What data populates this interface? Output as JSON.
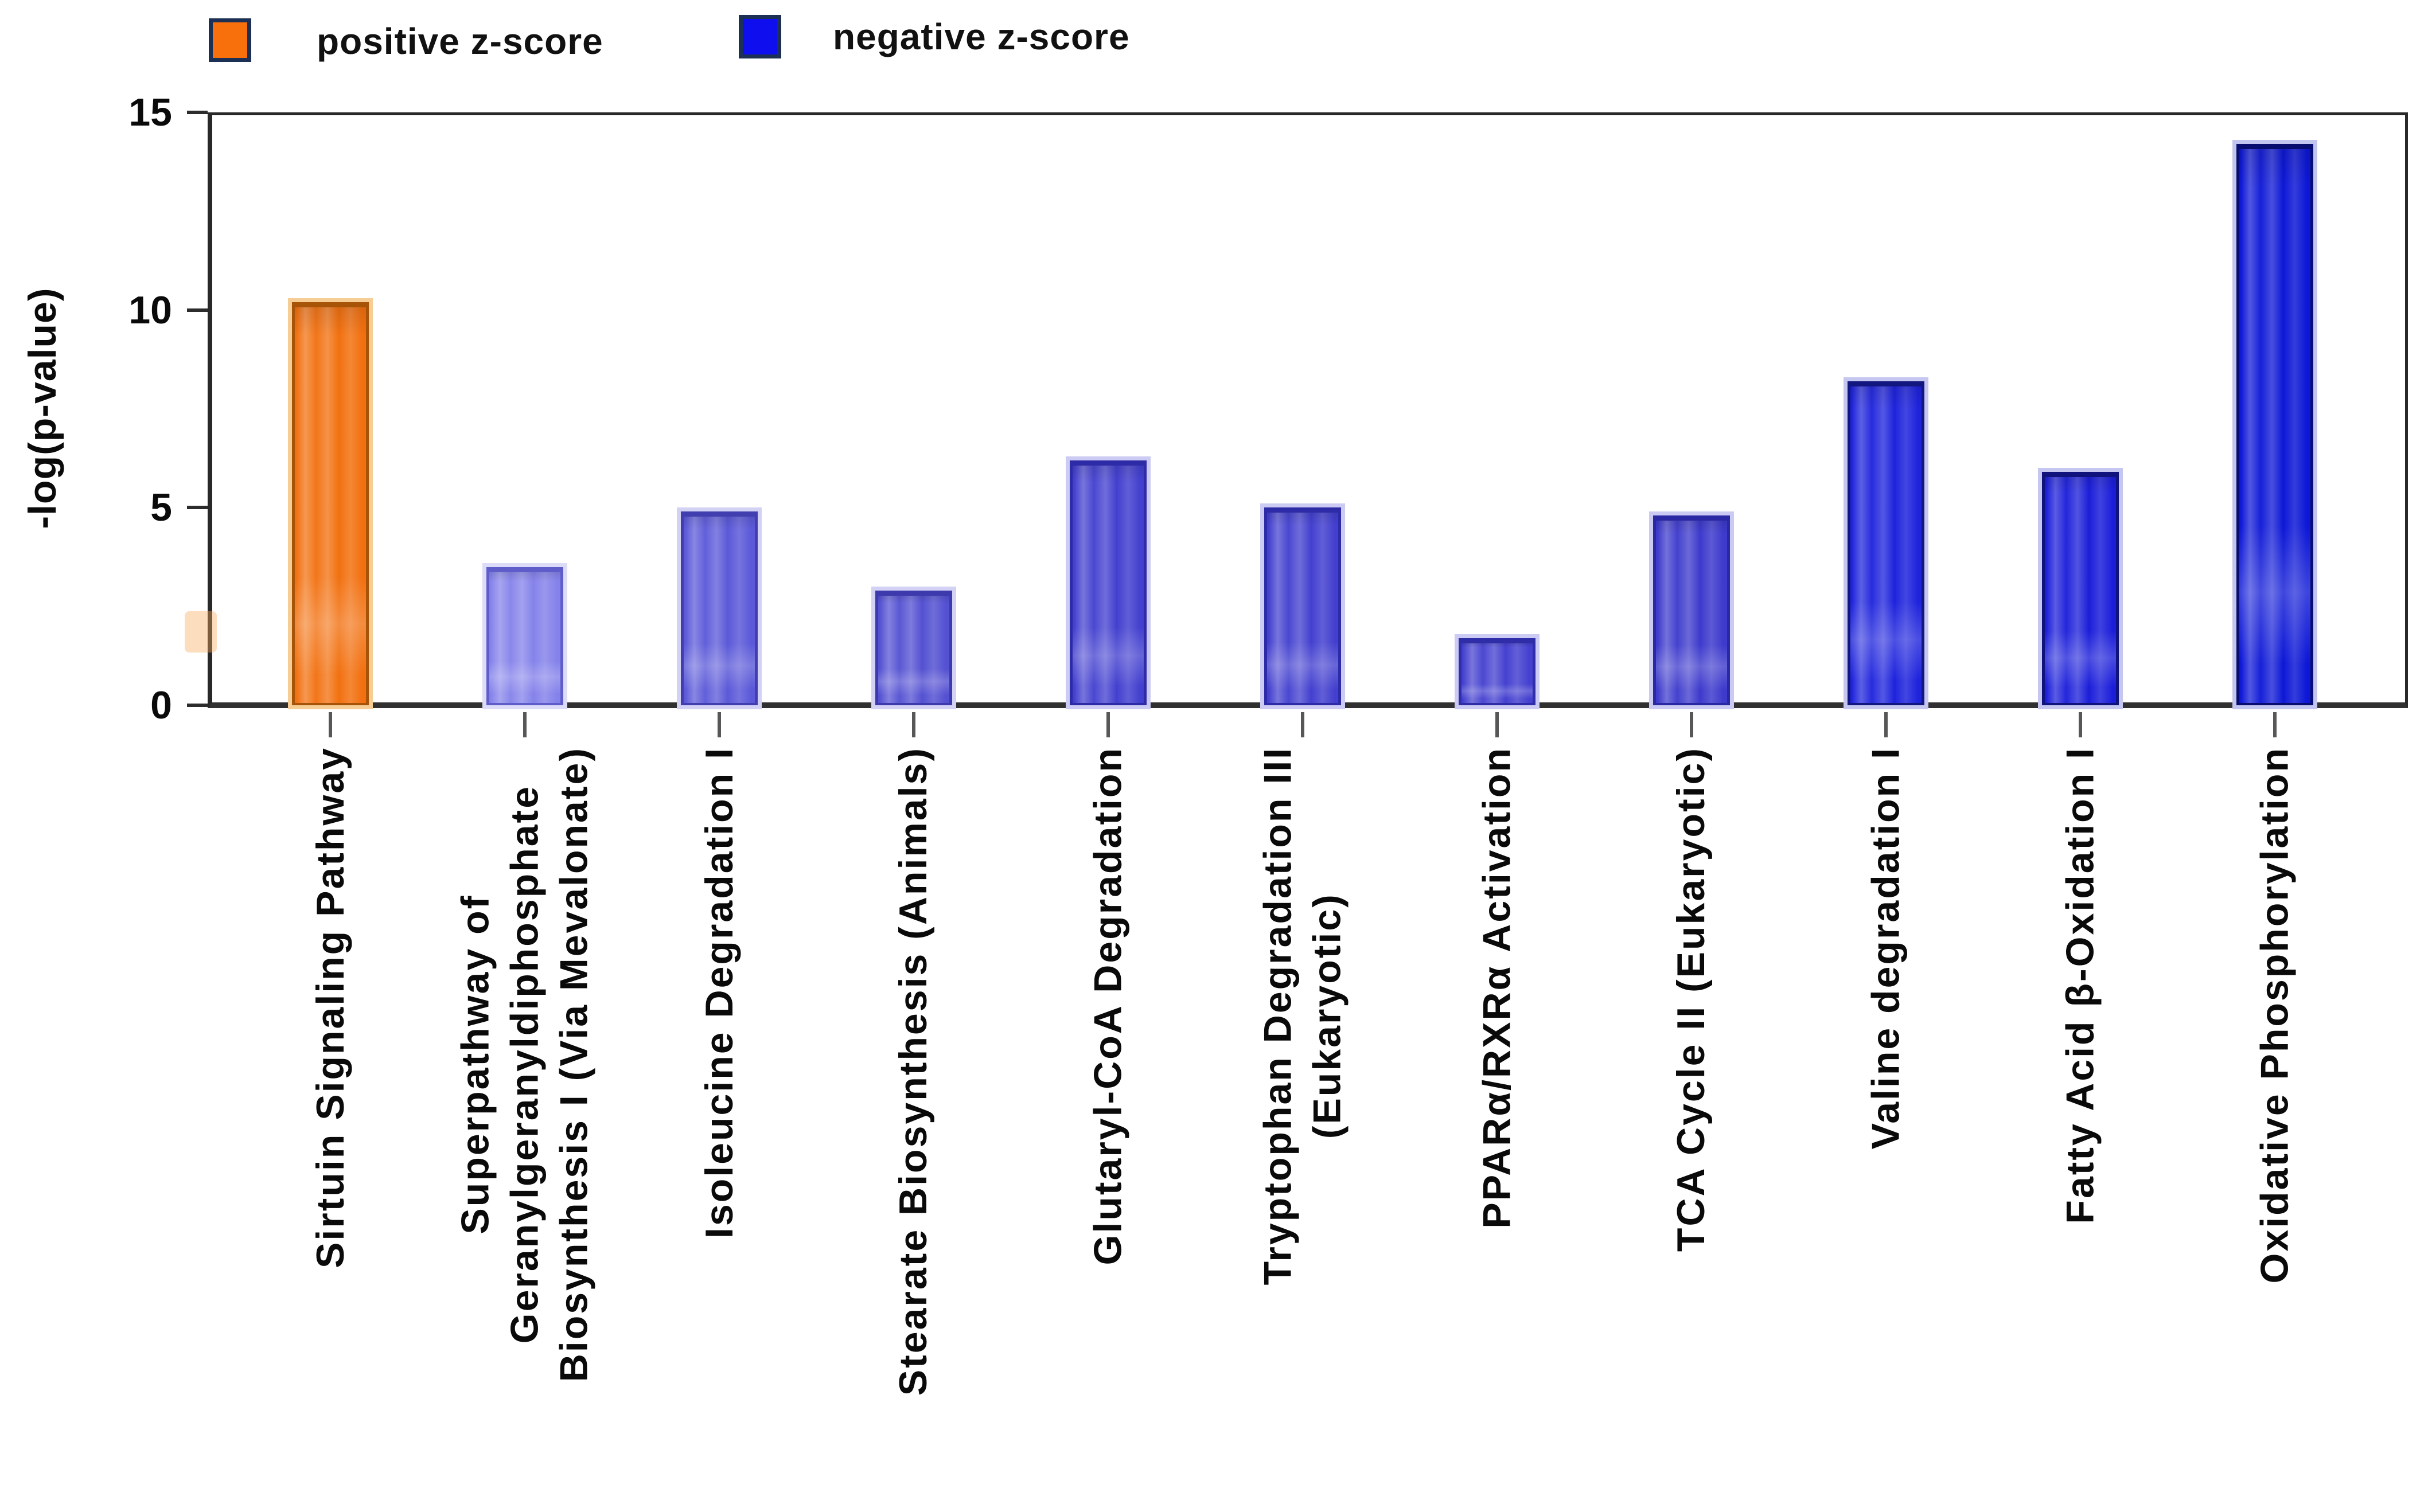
{
  "chart_data": {
    "type": "bar",
    "title": "",
    "ylabel": "-log(p-value)",
    "xlabel": "",
    "ylim": [
      0,
      15
    ],
    "yticks": [
      0,
      5,
      10,
      15
    ],
    "grid": false,
    "legend_position": "top-left",
    "legend": [
      {
        "label": "positive z-score",
        "color": "#F8700C",
        "border": "#1B3054"
      },
      {
        "label": "negative z-score",
        "color": "#0E0EEF",
        "border": "#1B3054"
      }
    ],
    "categories": [
      "Sirtuin Signaling Pathway",
      "Superpathway of\nGeranylgeranyldiphosphate\nBiosynthesis I (Via Mevalonate)",
      "Isoleucine Degradation I",
      "Stearate Biosynthesis (Animals)",
      "Glutaryl-CoA Degradation",
      "Tryptophan Degradation III\n(Eukaryotic)",
      "PPARα/RXRα Activation",
      "TCA Cycle II (Eukaryotic)",
      "Valine degradation I",
      "Fatty Acid β-Oxidation I",
      "Oxidative Phosphorylation"
    ],
    "values": [
      10.2,
      3.5,
      4.9,
      2.9,
      6.2,
      5.0,
      1.7,
      4.8,
      8.2,
      5.9,
      14.2
    ],
    "z_sign": [
      "positive",
      "negative",
      "negative",
      "negative",
      "negative",
      "negative",
      "negative",
      "negative",
      "negative",
      "negative",
      "negative"
    ],
    "bar_fill": [
      "#F2700F",
      "#8583EA",
      "#5B59D8",
      "#5451D2",
      "#4340CF",
      "#4340CF",
      "#4541D0",
      "#3D3ACC",
      "#1E23DC",
      "#1B1ED9",
      "#0D17D6"
    ],
    "bar_border": [
      "#A85408",
      "#5F5DC9",
      "#413FAF",
      "#3C3AAC",
      "#2E2BA6",
      "#2E2BA6",
      "#302DA8",
      "#2A28A3",
      "#12167F",
      "#10137C",
      "#070D6E"
    ],
    "bar_halo": [
      "#F7CD96",
      "#DCDBF8",
      "#D3D2F5",
      "#D3D2F5",
      "#CCCBF3",
      "#CCCBF3",
      "#CCCBF3",
      "#CACAF2",
      "#C5C7F0",
      "#C5C7F0",
      "#C2C5EF"
    ]
  },
  "axis_color": "#282828"
}
